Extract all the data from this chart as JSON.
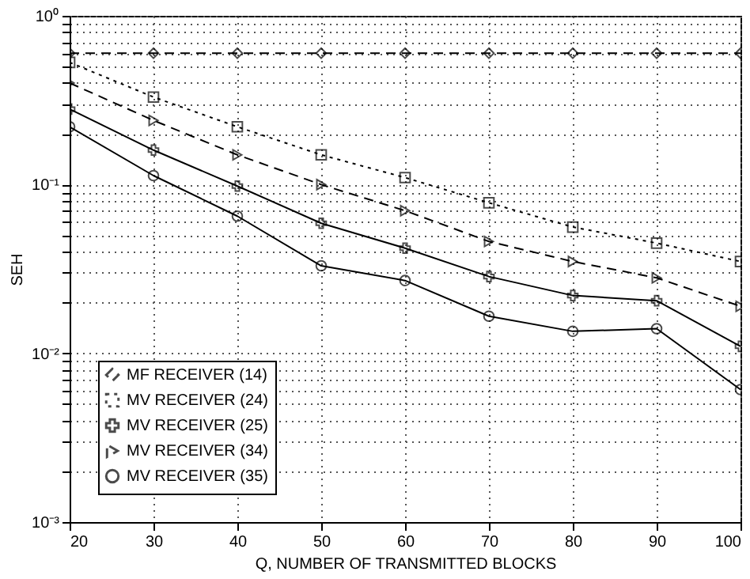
{
  "chart_data": {
    "type": "line",
    "xlabel": "Q, NUMBER OF TRANSMITTED BLOCKS",
    "ylabel": "SEH",
    "x": [
      20,
      30,
      40,
      50,
      60,
      70,
      80,
      90,
      100
    ],
    "series": [
      {
        "name": "MF RECEIVER (14)",
        "color": "#000000",
        "marker": "diamond",
        "line_style": "dashed",
        "values": [
          0.6,
          0.6,
          0.6,
          0.6,
          0.6,
          0.6,
          0.6,
          0.6,
          0.6
        ]
      },
      {
        "name": "MV RECEIVER (24)",
        "color": "#000000",
        "marker": "square",
        "line_style": "dotted",
        "values": [
          0.53,
          0.33,
          0.22,
          0.15,
          0.11,
          0.078,
          0.056,
          0.045,
          0.035
        ]
      },
      {
        "name": "MV RECEIVER (25)",
        "color": "#000000",
        "marker": "cross",
        "line_style": "solid",
        "values": [
          0.28,
          0.16,
          0.098,
          0.059,
          0.042,
          0.0285,
          0.022,
          0.0205,
          0.011
        ]
      },
      {
        "name": "MV RECEIVER (34)",
        "color": "#000000",
        "marker": "triangle",
        "line_style": "dashed",
        "values": [
          0.4,
          0.24,
          0.15,
          0.1,
          0.07,
          0.046,
          0.035,
          0.028,
          0.019
        ]
      },
      {
        "name": "MV RECEIVER (35)",
        "color": "#000000",
        "marker": "circle",
        "line_style": "solid",
        "values": [
          0.22,
          0.113,
          0.065,
          0.033,
          0.027,
          0.0166,
          0.0135,
          0.014,
          0.0061
        ]
      }
    ],
    "log": "y",
    "xlim": [
      20,
      100
    ],
    "ylim": [
      0.001,
      1
    ],
    "xticks": [
      20,
      30,
      40,
      50,
      60,
      70,
      80,
      90,
      100
    ],
    "yticks": [
      {
        "value": 0.001,
        "label": "10⁻³"
      },
      {
        "value": 0.002,
        "label": null
      },
      {
        "value": 0.003,
        "label": null
      },
      {
        "value": 0.004,
        "label": null
      },
      {
        "value": 0.005,
        "label": null
      },
      {
        "value": 0.006,
        "label": null
      },
      {
        "value": 0.007,
        "label": null
      },
      {
        "value": 0.008,
        "label": null
      },
      {
        "value": 0.009,
        "label": null
      },
      {
        "value": 0.01,
        "label": "10⁻²"
      },
      {
        "value": 0.02,
        "label": null
      },
      {
        "value": 0.03,
        "label": null
      },
      {
        "value": 0.04,
        "label": null
      },
      {
        "value": 0.05,
        "label": null
      },
      {
        "value": 0.06,
        "label": null
      },
      {
        "value": 0.07,
        "label": null
      },
      {
        "value": 0.08,
        "label": null
      },
      {
        "value": 0.09,
        "label": null
      },
      {
        "value": 0.1,
        "label": "10⁻¹"
      },
      {
        "value": 0.2,
        "label": null
      },
      {
        "value": 0.3,
        "label": null
      },
      {
        "value": 0.4,
        "label": null
      },
      {
        "value": 0.5,
        "label": null
      },
      {
        "value": 0.6,
        "label": null
      },
      {
        "value": 0.7,
        "label": null
      },
      {
        "value": 0.8,
        "label": null
      },
      {
        "value": 0.9,
        "label": null
      },
      {
        "value": 1,
        "label": "10⁰"
      }
    ],
    "grid": true,
    "legend": "bottom left"
  }
}
